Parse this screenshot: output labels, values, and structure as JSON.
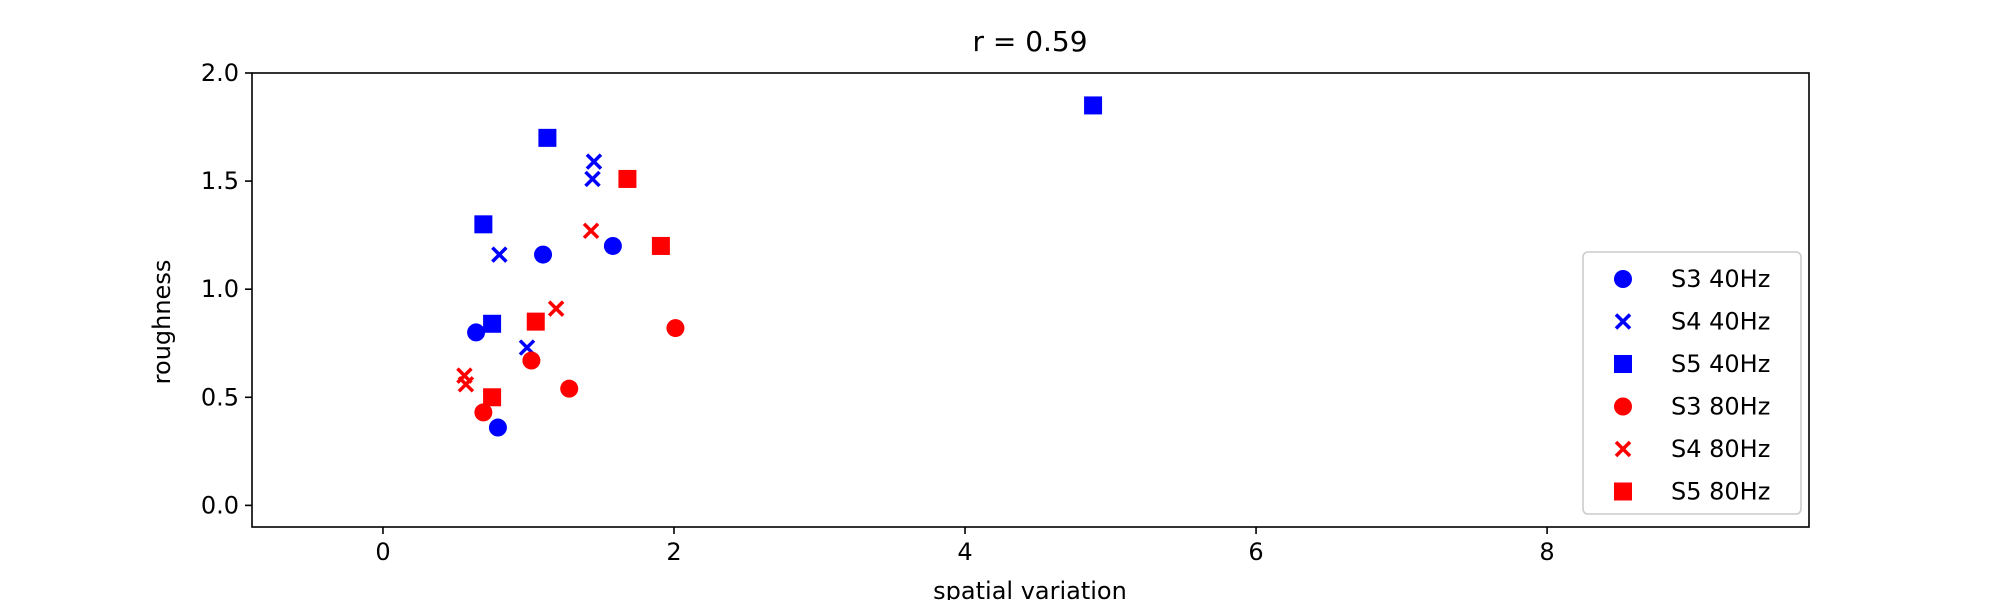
{
  "colors": {
    "s40": "#0000ff",
    "s80": "#ff0000",
    "axis": "#000000",
    "background": "#ffffff",
    "legend_border": "#cccccc"
  },
  "chart_data": {
    "type": "scatter",
    "title": "r = 0.59",
    "xlabel": "spatial variation",
    "ylabel": "roughness",
    "xlim": [
      -0.9,
      9.8
    ],
    "ylim": [
      -0.1,
      2.0
    ],
    "xticks": [
      0,
      2,
      4,
      6,
      8
    ],
    "xtick_labels": [
      "0",
      "2",
      "4",
      "6",
      "8"
    ],
    "yticks": [
      0.0,
      0.5,
      1.0,
      1.5,
      2.0
    ],
    "ytick_labels": [
      "0.0",
      "0.5",
      "1.0",
      "1.5",
      "2.0"
    ],
    "grid": false,
    "legend_placement": "center-right",
    "series": [
      {
        "name": "S3 40Hz",
        "marker": "circle",
        "color": "#0000ff",
        "points": [
          [
            0.64,
            0.8
          ],
          [
            1.1,
            1.16
          ],
          [
            1.58,
            1.2
          ],
          [
            0.79,
            0.36
          ]
        ]
      },
      {
        "name": "S4 40Hz",
        "marker": "x",
        "color": "#0000ff",
        "points": [
          [
            1.45,
            1.59
          ],
          [
            1.44,
            1.51
          ],
          [
            0.8,
            1.16
          ],
          [
            0.99,
            0.73
          ]
        ]
      },
      {
        "name": "S5 40Hz",
        "marker": "square",
        "color": "#0000ff",
        "points": [
          [
            1.13,
            1.7
          ],
          [
            0.69,
            1.3
          ],
          [
            0.75,
            0.84
          ],
          [
            4.88,
            1.85
          ]
        ]
      },
      {
        "name": "S3 80Hz",
        "marker": "circle",
        "color": "#ff0000",
        "points": [
          [
            2.01,
            0.82
          ],
          [
            1.02,
            0.67
          ],
          [
            1.28,
            0.54
          ],
          [
            0.69,
            0.43
          ]
        ]
      },
      {
        "name": "S4 80Hz",
        "marker": "x",
        "color": "#ff0000",
        "points": [
          [
            1.43,
            1.27
          ],
          [
            1.19,
            0.91
          ],
          [
            0.56,
            0.6
          ],
          [
            0.57,
            0.56
          ]
        ]
      },
      {
        "name": "S5 80Hz",
        "marker": "square",
        "color": "#ff0000",
        "points": [
          [
            1.68,
            1.51
          ],
          [
            1.91,
            1.2
          ],
          [
            1.05,
            0.85
          ],
          [
            0.75,
            0.5
          ]
        ]
      }
    ]
  }
}
